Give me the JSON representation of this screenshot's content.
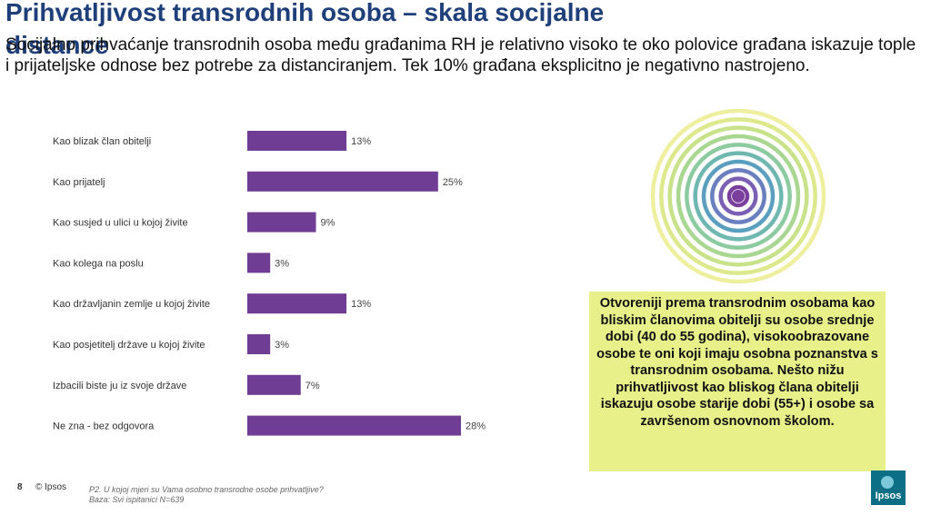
{
  "slide": {
    "title": "Prihvatljivost transrodnih osoba – skala socijalne distance",
    "intro": "Socijalno prihvaćanje transrodnih osoba među građanima RH je relativno visoko te oko polovice građana iskazuje tople i prijateljske odnose bez potrebe za distanciranjem. Tek 10% građana eksplicitno je negativno nastrojeno.",
    "callout": "Otvoreniji prema transrodnim osobama kao bliskim članovima obitelji su osobe srednje dobi (40 do 55 godina), visokoobrazovane osobe te oni koji imaju osobna poznanstva s transrodnim osobama. Nešto nižu prihvatljivost kao bliskog člana obitelji iskazuju osobe starije dobi (55+) i osobe sa završenom osnovnom školom.",
    "page_number": "8",
    "copyright": "© Ipsos",
    "footnote_question": "P2. U kojoj mjeri su  Vama osobno transrodne osobe prihvatljive?",
    "footnote_base": "Baza: Svi ispitanici N=639",
    "logo_text": "Ipsos"
  },
  "chart_data": {
    "type": "bar",
    "orientation": "horizontal",
    "categories": [
      "Kao blizak član obitelji",
      "Kao prijatelj",
      "Kao susjed u ulici u kojoj živite",
      "Kao kolega na poslu",
      "Kao državljanin zemlje u kojoj živite",
      "Kao posjetitelj države u kojoj živite",
      "Izbacili biste ju iz svoje države",
      "Ne zna - bez odgovora"
    ],
    "values": [
      13,
      25,
      9,
      3,
      13,
      3,
      7,
      28
    ],
    "value_labels": [
      "13%",
      "25%",
      "9%",
      "3%",
      "13%",
      "3%",
      "7%",
      "28%"
    ],
    "xlim": [
      0,
      30
    ],
    "grid": false,
    "bar_color": "#6f3d94"
  },
  "decor": {
    "ring_colors": [
      "#eef0a0",
      "#dde98c",
      "#c8e28a",
      "#a9d690",
      "#8ccaa0",
      "#6fb8b2",
      "#5b9fc0",
      "#6a7fc0",
      "#7a5fb4",
      "#7a3f9c"
    ],
    "callout_color": "#e8f08a"
  }
}
